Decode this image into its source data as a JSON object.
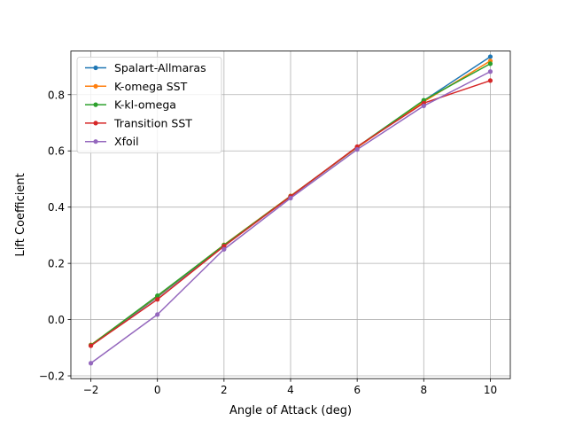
{
  "chart_data": {
    "type": "line",
    "title": "",
    "xlabel": "Angle of Attack (deg)",
    "ylabel": "Lift Coefficient",
    "x": [
      -2,
      0,
      2,
      4,
      6,
      8,
      10
    ],
    "xlim": [
      -2.6,
      10.6
    ],
    "ylim": [
      -0.21,
      0.955
    ],
    "xticks": [
      -2,
      0,
      2,
      4,
      6,
      8,
      10
    ],
    "xtick_labels": [
      "−2",
      "0",
      "2",
      "4",
      "6",
      "8",
      "10"
    ],
    "yticks": [
      -0.2,
      0.0,
      0.2,
      0.4,
      0.6,
      0.8
    ],
    "ytick_labels": [
      "−0.2",
      "0.0",
      "0.2",
      "0.4",
      "0.6",
      "0.8"
    ],
    "grid": true,
    "legend_position": "top-left",
    "series": [
      {
        "name": "Spalart-Allmaras",
        "color": "#1f77b4",
        "values": [
          -0.092,
          0.08,
          0.264,
          0.438,
          0.613,
          0.779,
          0.935
        ]
      },
      {
        "name": "K-omega SST",
        "color": "#ff7f0e",
        "values": [
          -0.09,
          0.083,
          0.266,
          0.44,
          0.612,
          0.775,
          0.92
        ]
      },
      {
        "name": "K-kl-omega",
        "color": "#2ca02c",
        "values": [
          -0.091,
          0.085,
          0.265,
          0.439,
          0.614,
          0.78,
          0.91
        ]
      },
      {
        "name": "Transition SST",
        "color": "#d62728",
        "values": [
          -0.093,
          0.072,
          0.261,
          0.438,
          0.615,
          0.77,
          0.85
        ]
      },
      {
        "name": "Xfoil",
        "color": "#9467bd",
        "values": [
          -0.155,
          0.018,
          0.25,
          0.432,
          0.605,
          0.76,
          0.882
        ]
      }
    ]
  }
}
